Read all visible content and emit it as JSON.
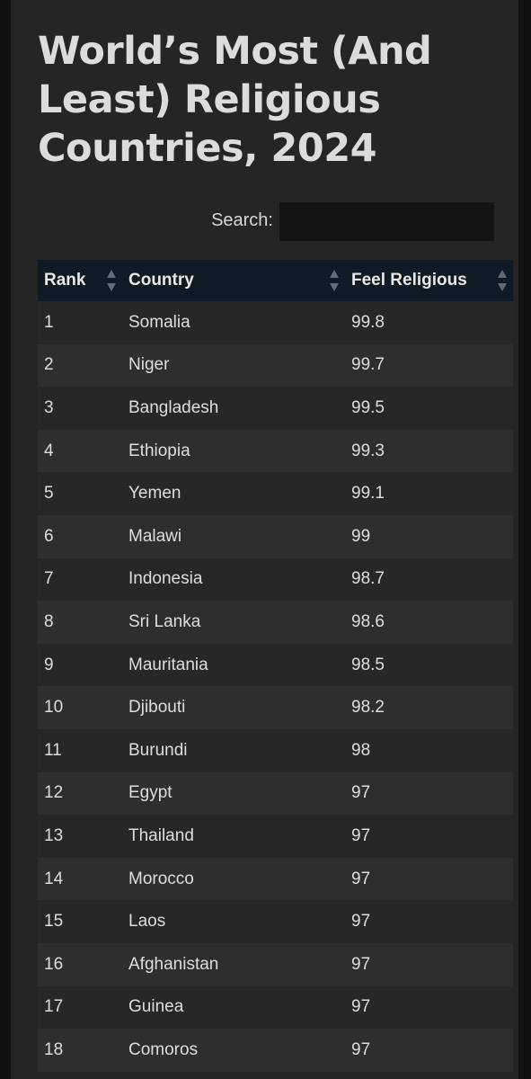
{
  "title": "World’s Most (And Least) Religious Countries, 2024",
  "search": {
    "label": "Search:",
    "value": ""
  },
  "table": {
    "headers": {
      "rank": "Rank",
      "country": "Country",
      "feel": "Feel Religious"
    },
    "rows": [
      {
        "rank": "1",
        "country": "Somalia",
        "feel": "99.8"
      },
      {
        "rank": "2",
        "country": "Niger",
        "feel": "99.7"
      },
      {
        "rank": "3",
        "country": "Bangladesh",
        "feel": "99.5"
      },
      {
        "rank": "4",
        "country": "Ethiopia",
        "feel": "99.3"
      },
      {
        "rank": "5",
        "country": "Yemen",
        "feel": "99.1"
      },
      {
        "rank": "6",
        "country": "Malawi",
        "feel": "99"
      },
      {
        "rank": "7",
        "country": "Indonesia",
        "feel": "98.7"
      },
      {
        "rank": "8",
        "country": "Sri Lanka",
        "feel": "98.6"
      },
      {
        "rank": "9",
        "country": "Mauritania",
        "feel": "98.5"
      },
      {
        "rank": "10",
        "country": "Djibouti",
        "feel": "98.2"
      },
      {
        "rank": "11",
        "country": "Burundi",
        "feel": "98"
      },
      {
        "rank": "12",
        "country": "Egypt",
        "feel": "97"
      },
      {
        "rank": "13",
        "country": "Thailand",
        "feel": "97"
      },
      {
        "rank": "14",
        "country": "Morocco",
        "feel": "97"
      },
      {
        "rank": "15",
        "country": "Laos",
        "feel": "97"
      },
      {
        "rank": "16",
        "country": "Afghanistan",
        "feel": "97"
      },
      {
        "rank": "17",
        "country": "Guinea",
        "feel": "97"
      },
      {
        "rank": "18",
        "country": "Comoros",
        "feel": "97"
      }
    ]
  },
  "colors": {
    "page_bg": "#111111",
    "panel_bg": "#252525",
    "header_bg": "#101a24",
    "row_odd": "#272727",
    "row_even": "#2e2e2e",
    "text": "#dedede",
    "sort_icon": "#5f6b78"
  }
}
